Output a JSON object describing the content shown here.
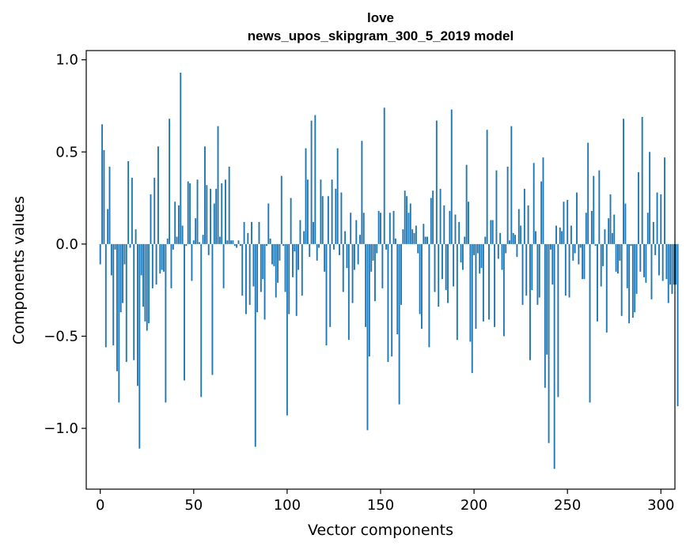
{
  "chart_data": {
    "type": "bar",
    "title_line1": "love",
    "title_line2": "news_upos_skipgram_300_5_2019 model",
    "xlabel": "Vector components",
    "ylabel": "Components values",
    "xlim": [
      -7.5,
      307.5
    ],
    "ylim": [
      -1.33,
      1.05
    ],
    "x_ticks": [
      0,
      50,
      100,
      150,
      200,
      250,
      300
    ],
    "x_tick_labels": [
      "0",
      "50",
      "100",
      "150",
      "200",
      "250",
      "300"
    ],
    "y_ticks": [
      1.0,
      0.5,
      0.0,
      -0.5,
      -1.0
    ],
    "y_tick_labels": [
      "1.0",
      "0.5",
      "0.0",
      "−0.5",
      "−1.0"
    ],
    "bar_color": "#1f77b4",
    "values": [
      -0.11,
      0.65,
      0.51,
      -0.56,
      0.19,
      0.42,
      -0.17,
      -0.55,
      -0.03,
      -0.69,
      -0.86,
      -0.37,
      -0.32,
      -0.11,
      -0.64,
      0.45,
      -0.02,
      0.36,
      -0.63,
      0.08,
      -0.77,
      -1.11,
      -0.17,
      -0.34,
      -0.42,
      -0.47,
      -0.43,
      0.27,
      -0.24,
      0.36,
      -0.22,
      0.53,
      -0.16,
      -0.14,
      -0.15,
      -0.86,
      0.03,
      0.68,
      -0.24,
      -0.03,
      0.23,
      0.04,
      0.21,
      0.93,
      0.1,
      -0.74,
      -0.01,
      0.34,
      0.33,
      -0.2,
      0.02,
      0.14,
      0.35,
      0.01,
      -0.83,
      0.05,
      0.53,
      0.32,
      -0.06,
      0.3,
      -0.71,
      0.22,
      0.3,
      0.64,
      0.04,
      0.33,
      -0.24,
      0.35,
      0.02,
      0.42,
      0.02,
      0.02,
      -0.01,
      -0.02,
      0.02,
      -0.01,
      -0.28,
      0.12,
      -0.38,
      0.06,
      -0.33,
      0.12,
      -0.23,
      -1.1,
      -0.37,
      0.12,
      -0.26,
      -0.19,
      -0.41,
      -0.01,
      0.22,
      0.03,
      -0.11,
      -0.12,
      -0.29,
      -0.21,
      -0.09,
      0.37,
      -0.01,
      -0.26,
      -0.93,
      -0.38,
      0.25,
      -0.18,
      -0.04,
      -0.39,
      -0.14,
      0.13,
      -0.28,
      0.07,
      0.52,
      0.35,
      -0.07,
      0.67,
      0.12,
      0.7,
      -0.09,
      -0.02,
      0.35,
      0.26,
      -0.15,
      -0.55,
      0.26,
      -0.45,
      0.35,
      -0.03,
      0.3,
      0.52,
      -0.06,
      0.28,
      -0.26,
      0.07,
      -0.13,
      -0.52,
      0.17,
      -0.32,
      -0.14,
      0.13,
      -0.11,
      0.05,
      0.56,
      0.17,
      -0.45,
      -1.01,
      -0.61,
      -0.15,
      -0.09,
      -0.31,
      -0.05,
      0.18,
      0.17,
      -0.24,
      0.74,
      -0.03,
      -0.64,
      0.17,
      -0.61,
      0.18,
      0.03,
      -0.49,
      -0.87,
      -0.33,
      0.08,
      0.29,
      0.26,
      0.17,
      0.22,
      0.08,
      0.06,
      0.1,
      -0.05,
      -0.38,
      -0.46,
      0.11,
      0.04,
      0.04,
      -0.56,
      0.25,
      0.29,
      -0.26,
      0.67,
      -0.34,
      0.3,
      -0.19,
      0.21,
      -0.25,
      -0.32,
      0.18,
      0.73,
      -0.23,
      0.16,
      -0.52,
      0.12,
      -0.1,
      -0.14,
      0.04,
      0.43,
      0.23,
      -0.53,
      -0.7,
      -0.06,
      -0.46,
      -0.05,
      -0.16,
      -0.13,
      -0.42,
      0.04,
      0.62,
      -0.41,
      0.13,
      0.13,
      -0.45,
      0.4,
      -0.08,
      0.06,
      -0.14,
      -0.5,
      -0.05,
      0.42,
      0.02,
      0.64,
      0.06,
      0.05,
      -0.07,
      0.19,
      0.1,
      -0.33,
      0.3,
      -0.28,
      0.21,
      -0.63,
      -0.25,
      0.44,
      0.07,
      -0.33,
      -0.29,
      0.34,
      0.47,
      -0.78,
      -0.6,
      -1.08,
      -0.03,
      -0.22,
      -1.22,
      0.1,
      -0.83,
      0.09,
      0.07,
      0.23,
      -0.28,
      0.24,
      -0.29,
      0.1,
      -0.09,
      -0.05,
      0.28,
      -0.11,
      -0.02,
      -0.19,
      -0.19,
      0.17,
      0.55,
      -0.86,
      0.18,
      0.37,
      -0.01,
      -0.42,
      0.4,
      -0.23,
      -0.12,
      0.08,
      -0.48,
      0.14,
      0.27,
      0.06,
      0.16,
      -0.15,
      -0.16,
      -0.09,
      -0.39,
      0.68,
      0.22,
      -0.24,
      -0.43,
      -0.01,
      -0.4,
      -0.37,
      -0.27,
      0.39,
      -0.15,
      0.69,
      -0.18,
      -0.21,
      0.17,
      0.5,
      -0.3,
      0.12,
      -0.06,
      0.28,
      -0.17,
      0.27,
      -0.2,
      0.47,
      -0.19,
      -0.32,
      -0.22,
      -0.27,
      -0.22,
      -0.22,
      -0.88
    ]
  }
}
